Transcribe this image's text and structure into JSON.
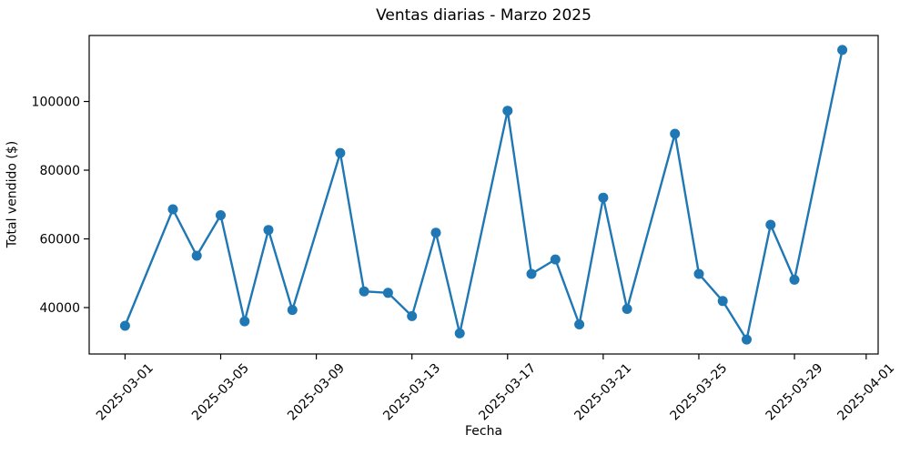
{
  "figure": {
    "kind": "static-matplotlib-line-chart"
  },
  "chart_data": {
    "type": "line",
    "title": "Ventas diarias - Marzo 2025",
    "xlabel": "Fecha",
    "ylabel": "Total vendido ($)",
    "line_color": "#1f77b4",
    "text_color": "#000000",
    "spine_color": "#000000",
    "marker": "circle",
    "marker_size": 11,
    "line_width": 2.4,
    "grid": false,
    "legend": null,
    "x": [
      "2025-03-01",
      "2025-03-03",
      "2025-03-04",
      "2025-03-05",
      "2025-03-06",
      "2025-03-07",
      "2025-03-08",
      "2025-03-10",
      "2025-03-11",
      "2025-03-12",
      "2025-03-13",
      "2025-03-14",
      "2025-03-15",
      "2025-03-17",
      "2025-03-18",
      "2025-03-19",
      "2025-03-20",
      "2025-03-21",
      "2025-03-22",
      "2025-03-24",
      "2025-03-25",
      "2025-03-26",
      "2025-03-27",
      "2025-03-28",
      "2025-03-29",
      "2025-03-31"
    ],
    "values": [
      34700,
      68600,
      55100,
      66900,
      36000,
      62600,
      39300,
      85000,
      44700,
      44300,
      37500,
      61800,
      32500,
      97300,
      49800,
      54000,
      35100,
      72000,
      39600,
      90600,
      49800,
      41900,
      30700,
      64100,
      48100,
      115000
    ],
    "x_tick_labels": [
      "2025-03-01",
      "2025-03-05",
      "2025-03-09",
      "2025-03-13",
      "2025-03-17",
      "2025-03-21",
      "2025-03-25",
      "2025-03-29",
      "2025-04-01"
    ],
    "x_tick_rotation_deg": 45,
    "y_ticks": [
      40000,
      60000,
      80000,
      100000
    ],
    "ylim": [
      26485,
      119215
    ],
    "xlim_days": [
      -0.5,
      32.5
    ]
  }
}
